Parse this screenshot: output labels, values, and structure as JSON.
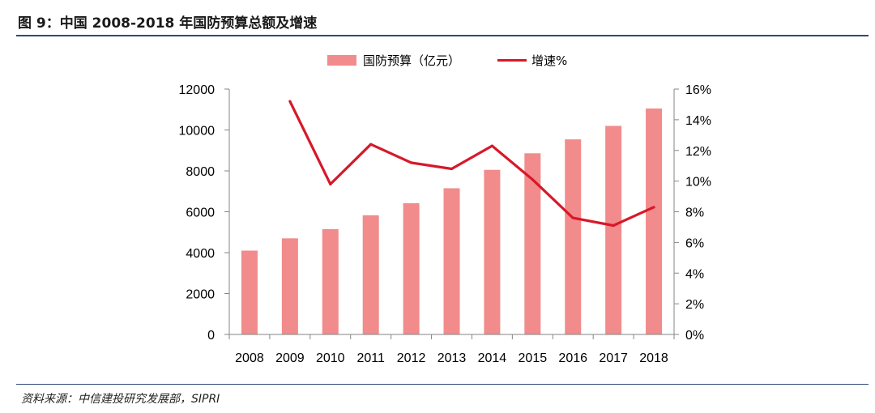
{
  "title": "图 9：中国 2008-2018 年国防预算总额及增速",
  "source": "资料来源：中信建投研究发展部，SIPRI",
  "chart_data": {
    "type": "bar+line",
    "categories": [
      "2008",
      "2009",
      "2010",
      "2011",
      "2012",
      "2013",
      "2014",
      "2015",
      "2016",
      "2017",
      "2018"
    ],
    "series": [
      {
        "name": "国防预算（亿元）",
        "type": "bar",
        "axis": "left",
        "color": "#f28b8b",
        "values": [
          4100,
          4700,
          5150,
          5830,
          6420,
          7150,
          8050,
          8860,
          9540,
          10200,
          11050
        ]
      },
      {
        "name": "增速%",
        "type": "line",
        "axis": "right",
        "color": "#d7182a",
        "values": [
          null,
          15.2,
          9.8,
          12.4,
          11.2,
          10.8,
          12.3,
          10.1,
          7.6,
          7.1,
          8.3
        ]
      }
    ],
    "left_axis": {
      "min": 0,
      "max": 12000,
      "ticks": [
        "0",
        "2000",
        "4000",
        "6000",
        "8000",
        "10000",
        "12000"
      ]
    },
    "right_axis": {
      "min": 0,
      "max": 16,
      "ticks": [
        "0%",
        "2%",
        "4%",
        "6%",
        "8%",
        "10%",
        "12%",
        "14%",
        "16%"
      ]
    },
    "legend_position": "top-center",
    "grid": false
  }
}
